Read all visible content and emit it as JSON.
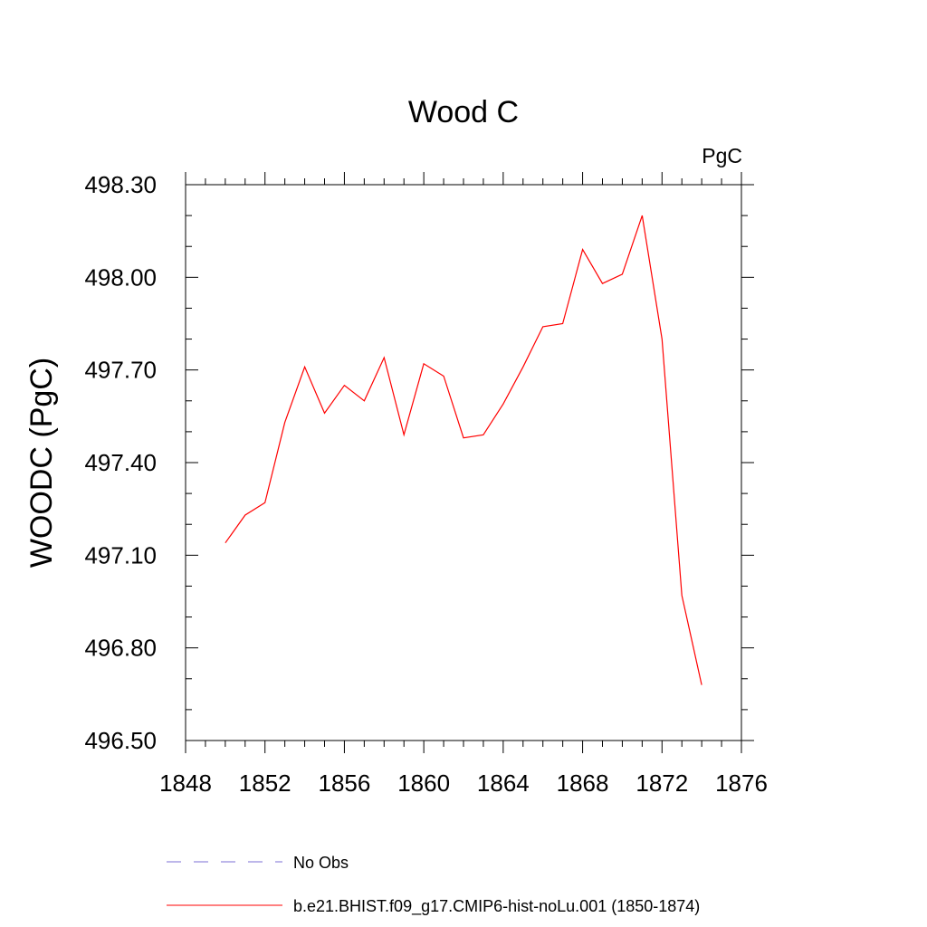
{
  "chart_data": {
    "type": "line",
    "title": "Wood C",
    "units": "PgC",
    "ylabel": "WOODC  (PgC)",
    "xlabel": "",
    "xlim": [
      1848,
      1876
    ],
    "ylim": [
      496.5,
      498.3
    ],
    "x_ticks": [
      1848,
      1852,
      1856,
      1860,
      1864,
      1868,
      1872,
      1876
    ],
    "x_tick_labels": [
      "1848",
      "1852",
      "1856",
      "1860",
      "1864",
      "1868",
      "1872",
      "1876"
    ],
    "x_minor_step": 1,
    "y_ticks": [
      496.5,
      496.8,
      497.1,
      497.4,
      497.7,
      498.0,
      498.3
    ],
    "y_tick_labels": [
      "496.50",
      "496.80",
      "497.10",
      "497.40",
      "497.70",
      "498.00",
      "498.30"
    ],
    "y_minor_step": 0.1,
    "grid": false,
    "legend_position": "bottom",
    "series": [
      {
        "name": "No Obs",
        "color": "#7b6fd6",
        "dash": "dashed",
        "x": [],
        "y": []
      },
      {
        "name": "b.e21.BHIST.f09_g17.CMIP6-hist-noLu.001 (1850-1874)",
        "color": "#ff0000",
        "dash": "solid",
        "x": [
          1850,
          1851,
          1852,
          1853,
          1854,
          1855,
          1856,
          1857,
          1858,
          1859,
          1860,
          1861,
          1862,
          1863,
          1864,
          1865,
          1866,
          1867,
          1868,
          1869,
          1870,
          1871,
          1872,
          1873,
          1874
        ],
        "y": [
          497.14,
          497.23,
          497.27,
          497.53,
          497.71,
          497.56,
          497.65,
          497.6,
          497.74,
          497.49,
          497.72,
          497.68,
          497.48,
          497.49,
          497.59,
          497.71,
          497.84,
          497.85,
          498.09,
          497.98,
          498.01,
          498.2,
          497.8,
          496.97,
          496.68
        ]
      }
    ]
  }
}
